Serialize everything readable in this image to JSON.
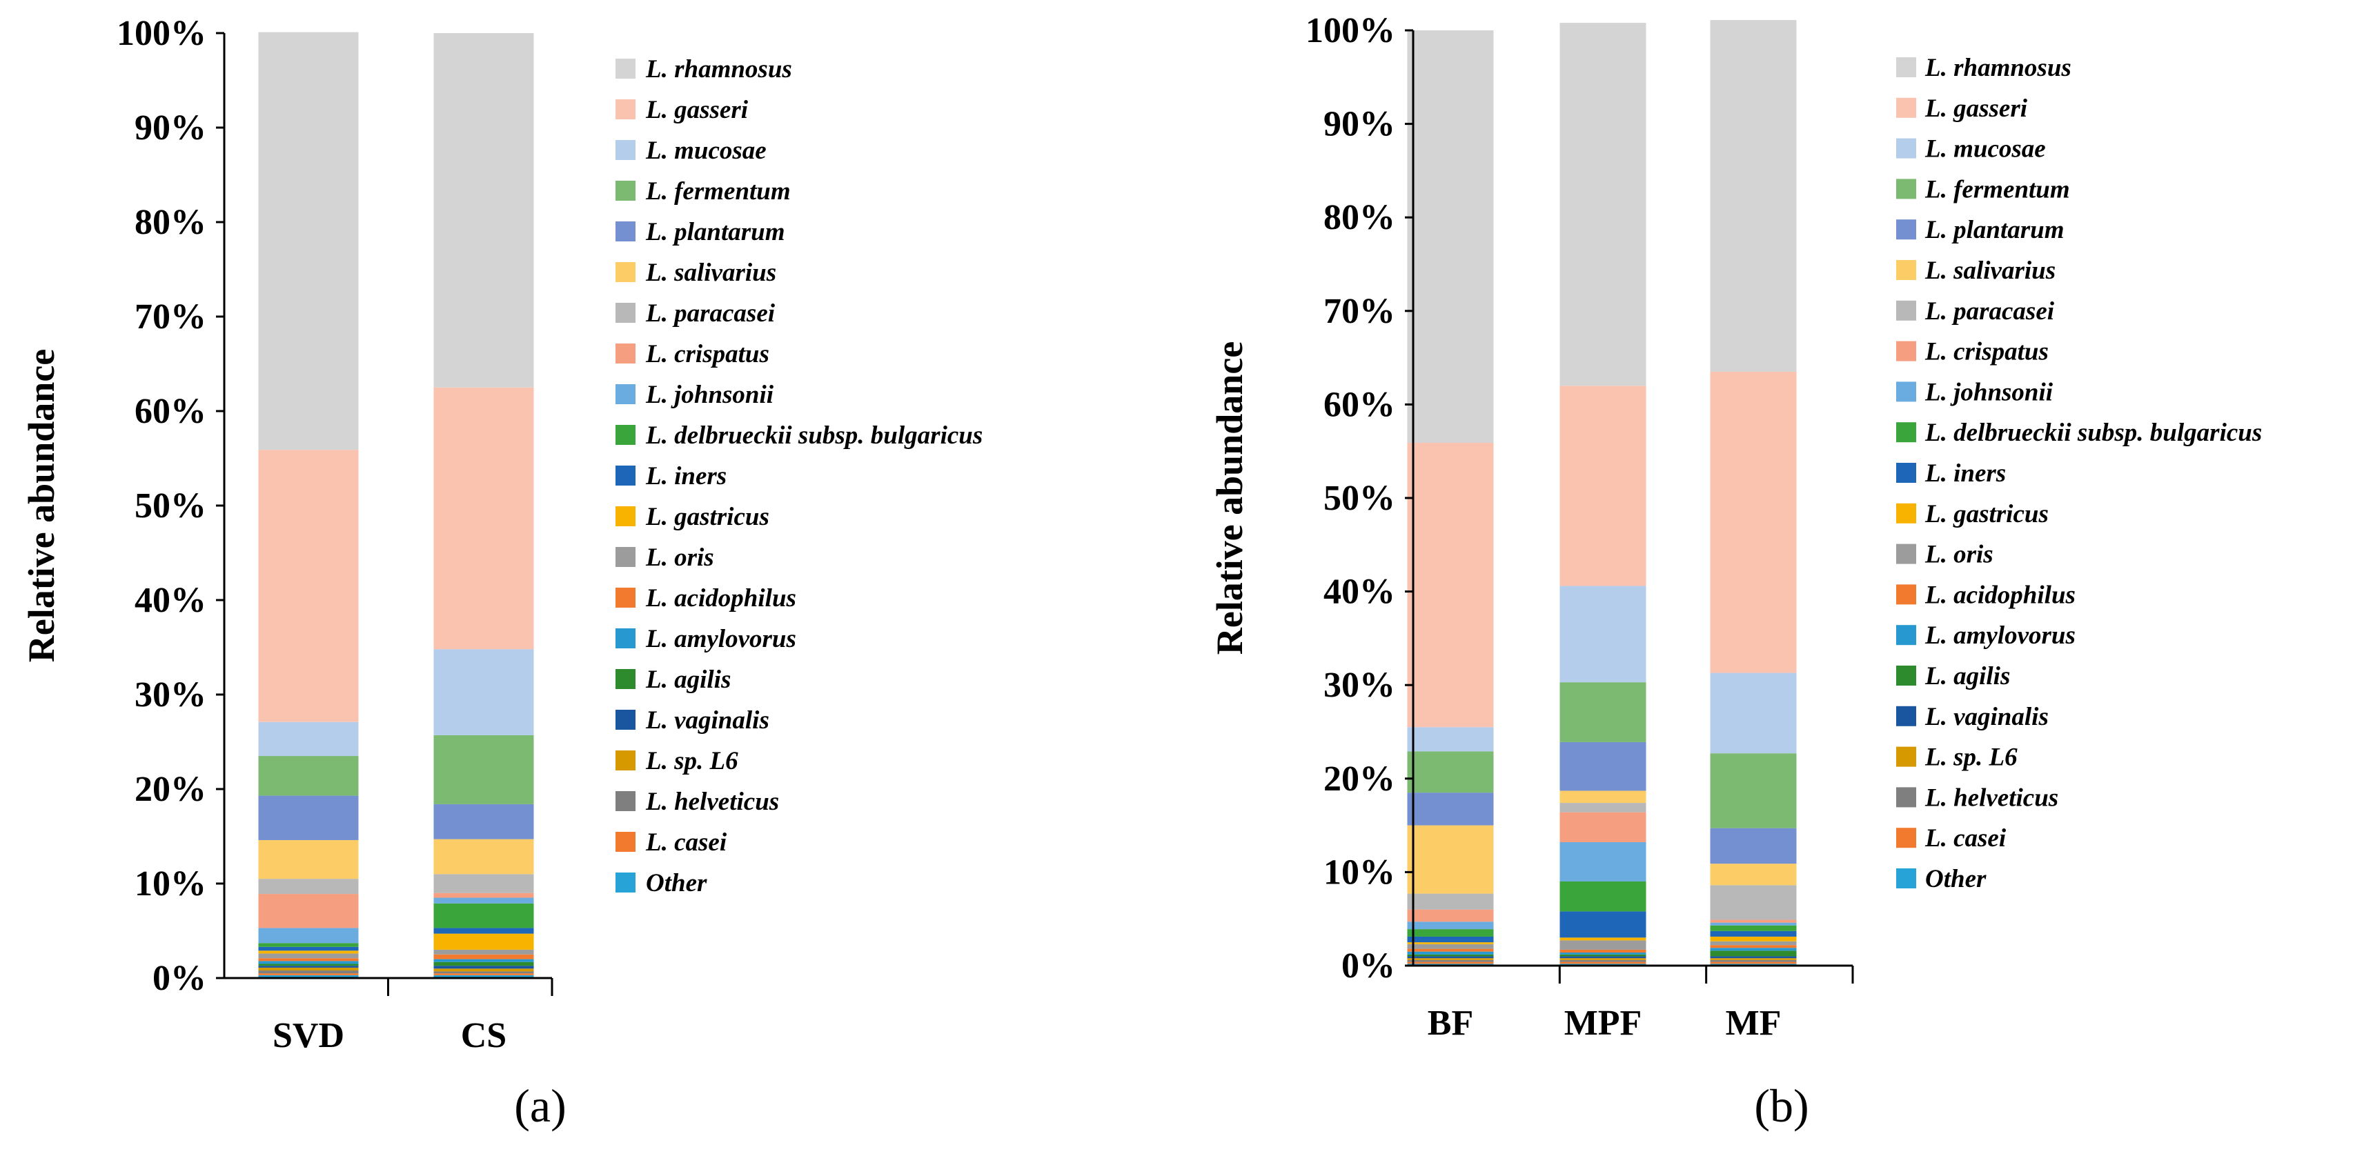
{
  "chart_data": [
    {
      "type": "bar",
      "stacked": true,
      "panel_label": "(a)",
      "title": "",
      "xlabel": "",
      "ylabel": "Relative abundance",
      "ylim": [
        0,
        100
      ],
      "yticks": [
        "0%",
        "10%",
        "20%",
        "30%",
        "40%",
        "50%",
        "60%",
        "70%",
        "80%",
        "90%",
        "100%"
      ],
      "categories": [
        "SVD",
        "CS"
      ],
      "legend_position": "right",
      "series": [
        {
          "name": "Other",
          "values": [
            0.3,
            0.3
          ]
        },
        {
          "name": "L. casei",
          "values": [
            0.2,
            0.2
          ]
        },
        {
          "name": "L. helveticus",
          "values": [
            0.3,
            0.2
          ]
        },
        {
          "name": "L. sp. L6",
          "values": [
            0.3,
            0.3
          ]
        },
        {
          "name": "L. vaginalis",
          "values": [
            0.2,
            0.3
          ]
        },
        {
          "name": "L. agilis",
          "values": [
            0.2,
            0.4
          ]
        },
        {
          "name": "L. amylovorus",
          "values": [
            0.3,
            0.3
          ]
        },
        {
          "name": "L. acidophilus",
          "values": [
            0.3,
            0.5
          ]
        },
        {
          "name": "L. oris",
          "values": [
            0.5,
            0.5
          ]
        },
        {
          "name": "L. gastricus",
          "values": [
            0.3,
            1.7
          ]
        },
        {
          "name": "L. iners",
          "values": [
            0.4,
            0.6
          ]
        },
        {
          "name": "L. delbrueckii subsp. bulgaricus",
          "values": [
            0.4,
            2.6
          ]
        },
        {
          "name": "L. johnsonii",
          "values": [
            1.6,
            0.6
          ]
        },
        {
          "name": "L. crispatus",
          "values": [
            3.6,
            0.5
          ]
        },
        {
          "name": "L. paracasei",
          "values": [
            1.6,
            2.0
          ]
        },
        {
          "name": "L. salivarius",
          "values": [
            4.1,
            3.7
          ]
        },
        {
          "name": "L. plantarum",
          "values": [
            4.7,
            3.7
          ]
        },
        {
          "name": "L. fermentum",
          "values": [
            4.2,
            7.3
          ]
        },
        {
          "name": "L. mucosae",
          "values": [
            3.6,
            9.1
          ]
        },
        {
          "name": "L. gasseri",
          "values": [
            28.8,
            27.7
          ]
        },
        {
          "name": "L. rhamnosus",
          "values": [
            44.2,
            37.5
          ]
        }
      ]
    },
    {
      "type": "bar",
      "stacked": true,
      "panel_label": "(b)",
      "title": "",
      "xlabel": "",
      "ylabel": "Relative abundance",
      "ylim": [
        0,
        100
      ],
      "yticks": [
        "0%",
        "10%",
        "20%",
        "30%",
        "40%",
        "50%",
        "60%",
        "70%",
        "80%",
        "90%",
        "100%"
      ],
      "categories": [
        "BF",
        "MPF",
        "MF"
      ],
      "legend_position": "right",
      "series": [
        {
          "name": "Other",
          "values": [
            0.2,
            0.2,
            0.2
          ]
        },
        {
          "name": "L. casei",
          "values": [
            0.2,
            0.2,
            0.2
          ]
        },
        {
          "name": "L. helveticus",
          "values": [
            0.2,
            0.2,
            0.2
          ]
        },
        {
          "name": "L. sp. L6",
          "values": [
            0.2,
            0.2,
            0.2
          ]
        },
        {
          "name": "L. vaginalis",
          "values": [
            0.2,
            0.2,
            0.2
          ]
        },
        {
          "name": "L. agilis",
          "values": [
            0.2,
            0.2,
            0.6
          ]
        },
        {
          "name": "L. amylovorus",
          "values": [
            0.3,
            0.2,
            0.3
          ]
        },
        {
          "name": "L. acidophilus",
          "values": [
            0.3,
            0.3,
            0.3
          ]
        },
        {
          "name": "L. oris",
          "values": [
            0.5,
            1.0,
            0.4
          ]
        },
        {
          "name": "L. gastricus",
          "values": [
            0.2,
            0.3,
            0.5
          ]
        },
        {
          "name": "L. iners",
          "values": [
            0.6,
            2.8,
            0.6
          ]
        },
        {
          "name": "L. delbrueckii subsp. bulgaricus",
          "values": [
            0.8,
            3.2,
            0.6
          ]
        },
        {
          "name": "L. johnsonii",
          "values": [
            0.8,
            4.2,
            0.3
          ]
        },
        {
          "name": "L. crispatus",
          "values": [
            1.3,
            3.2,
            0.3
          ]
        },
        {
          "name": "L. paracasei",
          "values": [
            1.7,
            1.0,
            3.7
          ]
        },
        {
          "name": "L. salivarius",
          "values": [
            7.3,
            1.3,
            2.3
          ]
        },
        {
          "name": "L. plantarum",
          "values": [
            3.5,
            5.2,
            3.8
          ]
        },
        {
          "name": "L. fermentum",
          "values": [
            4.4,
            6.4,
            8.0
          ]
        },
        {
          "name": "L. mucosae",
          "values": [
            2.6,
            10.3,
            8.6
          ]
        },
        {
          "name": "L. gasseri",
          "values": [
            30.4,
            21.4,
            32.2
          ]
        },
        {
          "name": "L. rhamnosus",
          "values": [
            44.1,
            38.8,
            37.6
          ]
        }
      ]
    }
  ],
  "colors": {
    "L. rhamnosus": "#d4d4d4",
    "L. gasseri": "#fac3b0",
    "L. mucosae": "#b4cdea",
    "L. fermentum": "#7cba72",
    "L. plantarum": "#7490d0",
    "L. salivarius": "#fccc67",
    "L. paracasei": "#b8b8b8",
    "L. crispatus": "#f59e80",
    "L. johnsonii": "#6aace0",
    "L. delbrueckii subsp. bulgaricus": "#3aa53a",
    "L. iners": "#1d66b8",
    "L. gastricus": "#f7b300",
    "L. oris": "#9c9c9c",
    "L. acidophilus": "#f17a2e",
    "L. amylovorus": "#2898d0",
    "L. agilis": "#2d8a2d",
    "L. vaginalis": "#1a56a0",
    "L. sp. L6": "#d69a00",
    "L. helveticus": "#7f7f7f",
    "L. casei": "#f17a2e",
    "Other": "#28a3d8"
  }
}
